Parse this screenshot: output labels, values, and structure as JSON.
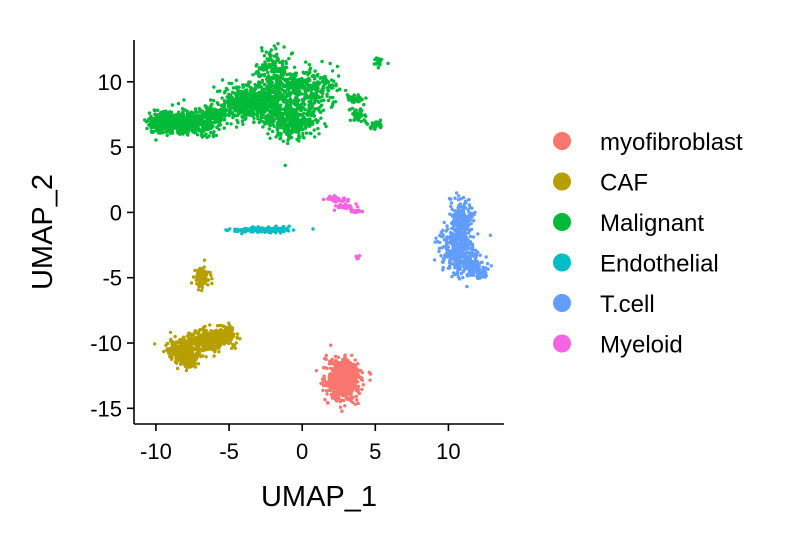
{
  "chart_data": {
    "type": "scatter",
    "title": "",
    "xlabel": "UMAP_1",
    "ylabel": "UMAP_2",
    "xlim": [
      -11.5,
      13.8
    ],
    "ylim": [
      -16.2,
      13.2
    ],
    "x_ticks": [
      -10,
      -5,
      0,
      5,
      10
    ],
    "y_ticks": [
      -15,
      -10,
      -5,
      0,
      5,
      10
    ],
    "x_tick_labels": [
      "-10",
      "-5",
      "0",
      "5",
      "10"
    ],
    "y_tick_labels": [
      "-15",
      "-10",
      "-5",
      "0",
      "5",
      "10"
    ],
    "grid": false,
    "legend_position": "right",
    "series": [
      {
        "name": "myofibroblast",
        "color": "#F8766D",
        "clusters": [
          {
            "x": 2.8,
            "y": -12.8,
            "sx": 0.55,
            "sy": 0.75,
            "n": 700
          }
        ]
      },
      {
        "name": "CAF",
        "color": "#B79F00",
        "clusters": [
          {
            "x": -8.2,
            "y": -10.6,
            "sx": 0.6,
            "sy": 0.45,
            "n": 260
          },
          {
            "x": -7.6,
            "y": -11.4,
            "sx": 0.2,
            "sy": 0.35,
            "n": 60
          },
          {
            "x": -6.5,
            "y": -9.8,
            "sx": 0.7,
            "sy": 0.45,
            "n": 240
          },
          {
            "x": -5.3,
            "y": -9.4,
            "sx": 0.35,
            "sy": 0.4,
            "n": 120
          },
          {
            "x": -6.9,
            "y": -5.0,
            "sx": 0.25,
            "sy": 0.35,
            "n": 90
          }
        ]
      },
      {
        "name": "Malignant",
        "color": "#00BA38",
        "clusters": [
          {
            "x": -9.5,
            "y": 6.9,
            "sx": 0.45,
            "sy": 0.4,
            "n": 280
          },
          {
            "x": -7.6,
            "y": 6.9,
            "sx": 0.85,
            "sy": 0.45,
            "n": 420
          },
          {
            "x": -5.9,
            "y": 7.6,
            "sx": 0.5,
            "sy": 0.35,
            "n": 120
          },
          {
            "x": -4.0,
            "y": 8.3,
            "sx": 0.7,
            "sy": 0.65,
            "n": 340
          },
          {
            "x": -2.2,
            "y": 8.5,
            "sx": 0.6,
            "sy": 0.75,
            "n": 300
          },
          {
            "x": -0.7,
            "y": 7.2,
            "sx": 0.8,
            "sy": 0.75,
            "n": 420
          },
          {
            "x": -2.0,
            "y": 10.9,
            "sx": 0.55,
            "sy": 0.8,
            "n": 160
          },
          {
            "x": -0.2,
            "y": 9.6,
            "sx": 0.7,
            "sy": 0.6,
            "n": 180
          },
          {
            "x": 1.3,
            "y": 9.5,
            "sx": 0.7,
            "sy": 0.8,
            "n": 130
          },
          {
            "x": 3.6,
            "y": 8.7,
            "sx": 0.3,
            "sy": 0.2,
            "n": 50
          },
          {
            "x": 3.8,
            "y": 7.5,
            "sx": 0.3,
            "sy": 0.3,
            "n": 40
          },
          {
            "x": 5.0,
            "y": 6.7,
            "sx": 0.35,
            "sy": 0.12,
            "n": 35
          },
          {
            "x": 5.3,
            "y": 11.5,
            "sx": 0.25,
            "sy": 0.25,
            "n": 18
          }
        ]
      },
      {
        "name": "Endothelial",
        "color": "#00BFC4",
        "clusters": [
          {
            "x": -2.7,
            "y": -1.35,
            "sx": 0.9,
            "sy": 0.1,
            "n": 160
          }
        ]
      },
      {
        "name": "T.cell",
        "color": "#619CFF",
        "clusters": [
          {
            "x": 10.9,
            "y": -0.5,
            "sx": 0.4,
            "sy": 0.8,
            "n": 200
          },
          {
            "x": 10.6,
            "y": -2.9,
            "sx": 0.6,
            "sy": 0.9,
            "n": 260
          },
          {
            "x": 11.4,
            "y": -3.9,
            "sx": 0.55,
            "sy": 0.5,
            "n": 140
          },
          {
            "x": 12.2,
            "y": -4.5,
            "sx": 0.3,
            "sy": 0.35,
            "n": 40
          }
        ]
      },
      {
        "name": "Myeloid",
        "color": "#F564E3",
        "clusters": [
          {
            "x": 2.2,
            "y": 1.0,
            "sx": 0.35,
            "sy": 0.12,
            "n": 50
          },
          {
            "x": 3.0,
            "y": 0.45,
            "sx": 0.35,
            "sy": 0.1,
            "n": 40
          },
          {
            "x": 3.8,
            "y": 0.08,
            "sx": 0.2,
            "sy": 0.06,
            "n": 18
          },
          {
            "x": 3.8,
            "y": -3.4,
            "sx": 0.08,
            "sy": 0.08,
            "n": 5
          }
        ]
      }
    ]
  }
}
